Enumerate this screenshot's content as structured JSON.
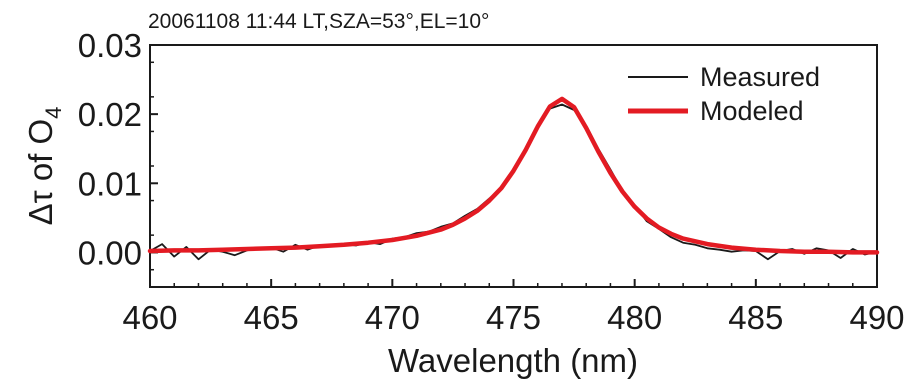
{
  "chart_data": {
    "type": "line",
    "title": "20061108 11:44 LT,SZA=53°,EL=10°",
    "xlabel": "Wavelength (nm)",
    "ylabel": {
      "prefix": "Δτ of O",
      "subscript": "4"
    },
    "xlim": [
      460,
      490
    ],
    "ylim": [
      -0.005,
      0.03
    ],
    "xticks": [
      460,
      465,
      470,
      475,
      480,
      485,
      490
    ],
    "xtick_labels": [
      "460",
      "465",
      "470",
      "475",
      "480",
      "485",
      "490"
    ],
    "yticks": [
      0.0,
      0.01,
      0.02,
      0.03
    ],
    "ytick_labels": [
      "0.00",
      "0.01",
      "0.02",
      "0.03"
    ],
    "grid": false,
    "legend_position": "top-right",
    "series": [
      {
        "name": "Measured",
        "color": "#1a1a1a",
        "x": [
          460.0,
          460.5,
          461.0,
          461.5,
          462.0,
          462.5,
          463.0,
          463.5,
          464.0,
          464.5,
          465.0,
          465.5,
          466.0,
          466.5,
          467.0,
          467.5,
          468.0,
          468.5,
          469.0,
          469.5,
          470.0,
          470.5,
          471.0,
          471.5,
          472.0,
          472.5,
          473.0,
          473.5,
          474.0,
          474.5,
          475.0,
          475.5,
          476.0,
          476.5,
          477.0,
          477.5,
          478.0,
          478.5,
          479.0,
          479.5,
          480.0,
          480.5,
          481.0,
          481.5,
          482.0,
          482.5,
          483.0,
          483.5,
          484.0,
          484.5,
          485.0,
          485.5,
          486.0,
          486.5,
          487.0,
          487.5,
          488.0,
          488.5,
          489.0,
          489.5,
          490.0
        ],
        "y": [
          0.0002,
          0.0012,
          -0.0006,
          0.0008,
          -0.001,
          0.0004,
          0.0001,
          -0.0004,
          0.0003,
          0.0006,
          0.0007,
          0.0001,
          0.0011,
          0.0004,
          0.001,
          0.0009,
          0.0012,
          0.001,
          0.0015,
          0.0012,
          0.002,
          0.0022,
          0.0028,
          0.003,
          0.0037,
          0.0042,
          0.0053,
          0.0063,
          0.0078,
          0.0093,
          0.0121,
          0.015,
          0.0185,
          0.0208,
          0.0214,
          0.0206,
          0.0183,
          0.015,
          0.012,
          0.0089,
          0.0068,
          0.0045,
          0.0034,
          0.0022,
          0.0014,
          0.0011,
          0.0006,
          0.0004,
          0.0001,
          0.0003,
          0.0002,
          -0.001,
          0.0002,
          0.0005,
          -0.0002,
          0.0006,
          0.0003,
          -0.0008,
          0.0005,
          -0.0003,
          0.0001
        ]
      },
      {
        "name": "Modeled",
        "color": "#e31b23",
        "x": [
          460.0,
          461.0,
          462.0,
          463.0,
          464.0,
          465.0,
          466.0,
          467.0,
          468.0,
          469.0,
          470.0,
          471.0,
          472.0,
          472.5,
          473.0,
          473.5,
          474.0,
          474.5,
          475.0,
          475.5,
          476.0,
          476.5,
          477.0,
          477.5,
          478.0,
          478.5,
          479.0,
          479.5,
          480.0,
          480.5,
          481.0,
          481.5,
          482.0,
          483.0,
          484.0,
          485.0,
          486.0,
          487.0,
          488.0,
          489.0,
          490.0
        ],
        "y": [
          0.0002,
          0.0003,
          0.0003,
          0.0004,
          0.0005,
          0.0006,
          0.0007,
          0.0009,
          0.0011,
          0.0014,
          0.0018,
          0.0024,
          0.0033,
          0.004,
          0.0049,
          0.006,
          0.0075,
          0.0093,
          0.0118,
          0.0148,
          0.0182,
          0.0211,
          0.0222,
          0.021,
          0.018,
          0.0146,
          0.0115,
          0.0088,
          0.0066,
          0.0049,
          0.0036,
          0.0027,
          0.002,
          0.0012,
          0.0007,
          0.0004,
          0.0002,
          0.0001,
          0.0001,
          0.0,
          0.0
        ]
      }
    ]
  }
}
